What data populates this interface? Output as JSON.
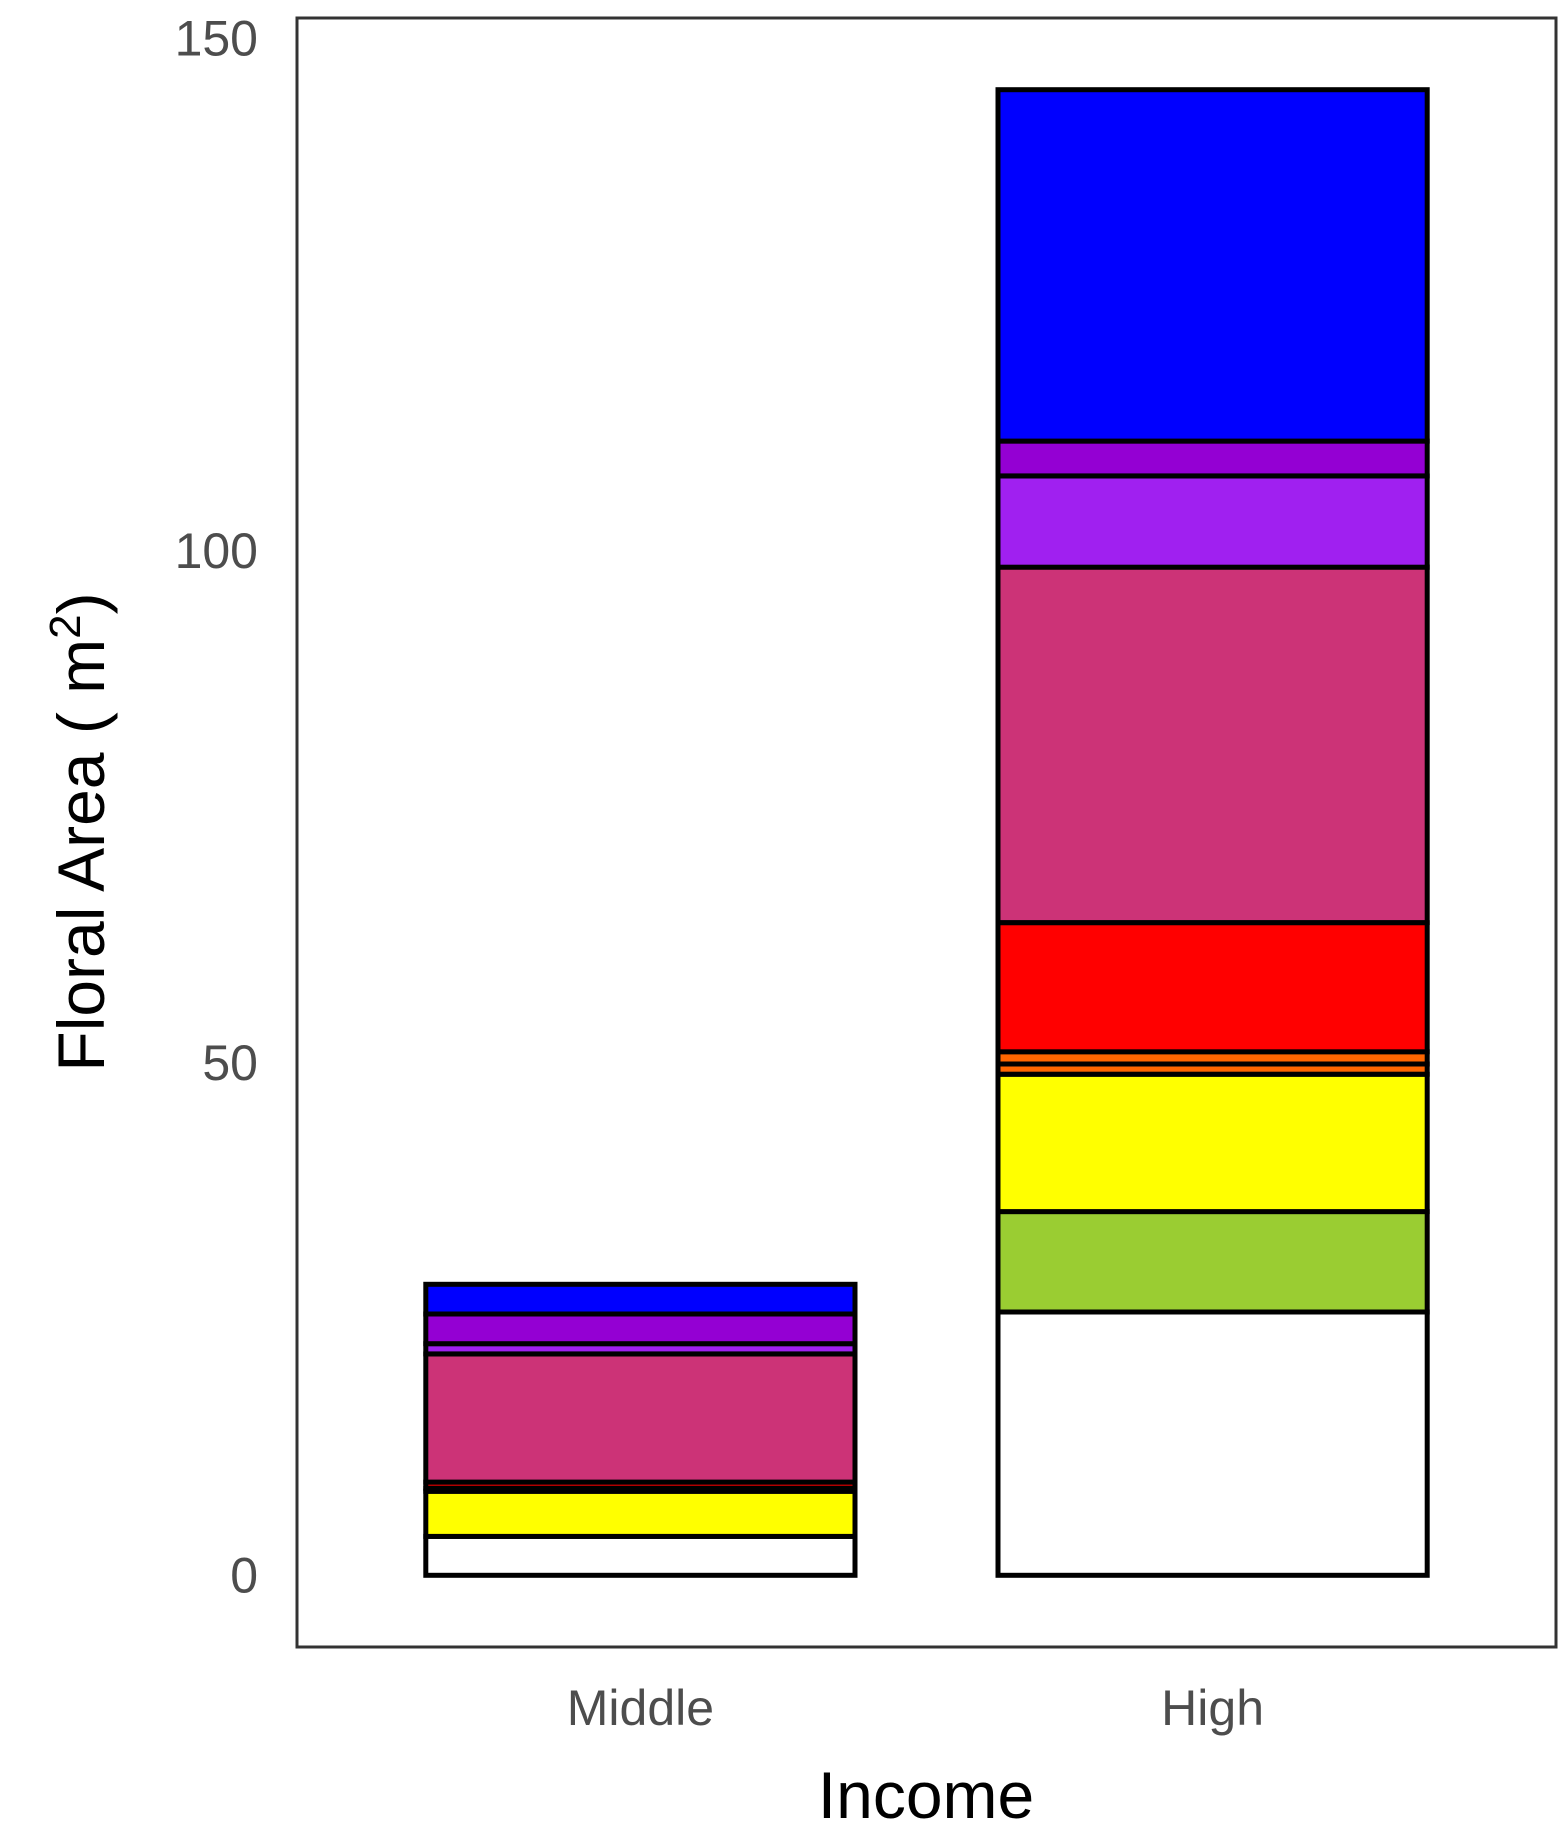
{
  "chart_data": {
    "type": "bar",
    "stacked": true,
    "categories": [
      "Middle",
      "High"
    ],
    "xlabel": "Income",
    "ylabel": "Floral Area ( m",
    "ylabel_superscript": "2",
    "ylabel_suffix": ")",
    "ylim": [
      -7,
      152
    ],
    "yticks": [
      0,
      50,
      100,
      150
    ],
    "grid": false,
    "legend": "none",
    "segment_border_color": "#000000",
    "stacks": [
      {
        "category": "Middle",
        "segments": [
          {
            "color": "#ffffff",
            "value": 3.8
          },
          {
            "color": "#ffff00",
            "value": 4.4
          },
          {
            "color": "#ff0000",
            "value": 0.3
          },
          {
            "color": "#ff0000",
            "value": 0.6
          },
          {
            "color": "#cc3377",
            "value": 12.5
          },
          {
            "color": "#a020f0",
            "value": 1.0
          },
          {
            "color": "#9400d3",
            "value": 2.9
          },
          {
            "color": "#0000ff",
            "value": 2.9
          }
        ]
      },
      {
        "category": "High",
        "segments": [
          {
            "color": "#ffffff",
            "value": 25.7
          },
          {
            "color": "#9acd32",
            "value": 9.8
          },
          {
            "color": "#ffff00",
            "value": 13.4
          },
          {
            "color": "#ff6600",
            "value": 1.0
          },
          {
            "color": "#ff6600",
            "value": 1.2
          },
          {
            "color": "#ff0000",
            "value": 12.6
          },
          {
            "color": "#cc3377",
            "value": 34.7
          },
          {
            "color": "#a020f0",
            "value": 8.9
          },
          {
            "color": "#9400d3",
            "value": 3.4
          },
          {
            "color": "#0000ff",
            "value": 34.3
          }
        ]
      }
    ]
  }
}
